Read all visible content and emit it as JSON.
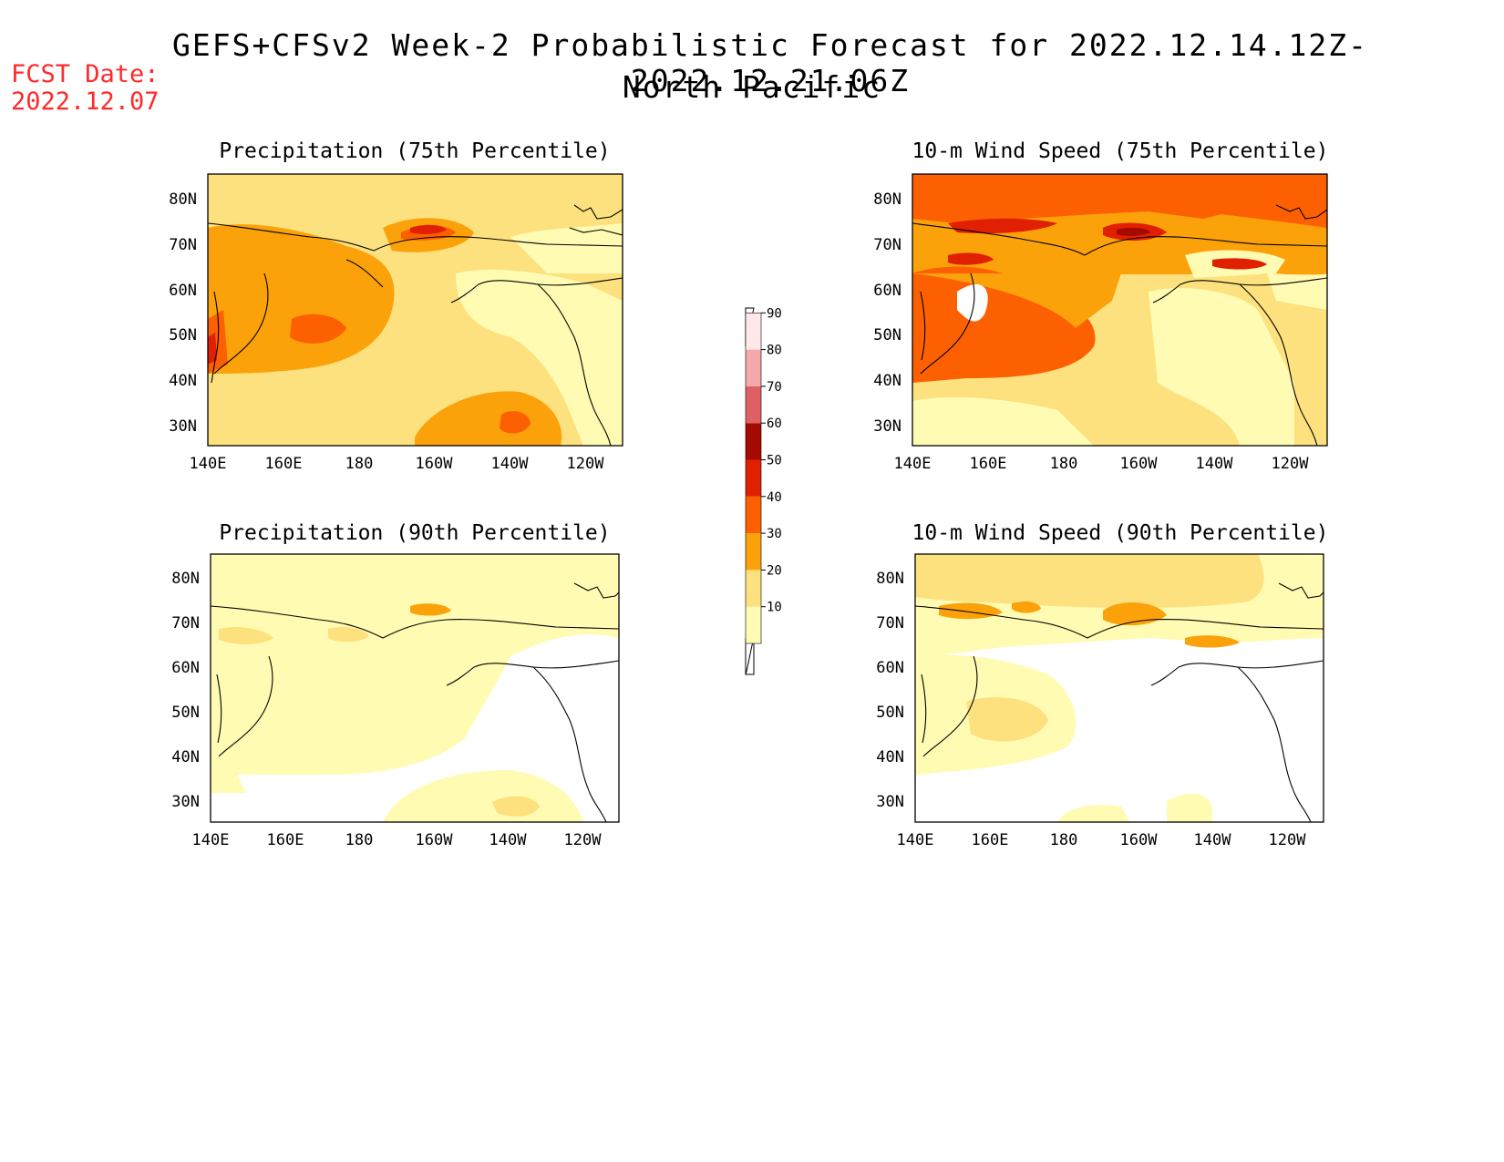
{
  "header": {
    "title": "GEFS+CFSv2 Week-2 Probabilistic Forecast for 2022.12.14.12Z-2022.12.21.06Z",
    "region": "North Pacific",
    "fcst_label": "FCST Date:",
    "fcst_date": "2022.12.07",
    "fcst_color": "#ff2a2a"
  },
  "colorbar": {
    "levels": [
      "10",
      "20",
      "30",
      "40",
      "50",
      "60",
      "70",
      "80",
      "90"
    ],
    "colors": [
      "#fffbb2",
      "#fde17e",
      "#fba10a",
      "#fd6000",
      "#e02000",
      "#a50a00",
      "#de6064",
      "#f4a8aa",
      "#ffe8ea"
    ]
  },
  "panels": [
    {
      "title": "Precipitation (75th Percentile)",
      "lat_ticks": [
        "80N",
        "70N",
        "60N",
        "50N",
        "40N",
        "30N"
      ],
      "lon_ticks": [
        "140E",
        "160E",
        "180",
        "160W",
        "140W",
        "120W"
      ]
    },
    {
      "title": "10-m Wind Speed (75th Percentile)",
      "lat_ticks": [
        "80N",
        "70N",
        "60N",
        "50N",
        "40N",
        "30N"
      ],
      "lon_ticks": [
        "140E",
        "160E",
        "180",
        "160W",
        "140W",
        "120W"
      ]
    },
    {
      "title": "Precipitation (90th Percentile)",
      "lat_ticks": [
        "80N",
        "70N",
        "60N",
        "50N",
        "40N",
        "30N"
      ],
      "lon_ticks": [
        "140E",
        "160E",
        "180",
        "160W",
        "140W",
        "120W"
      ]
    },
    {
      "title": "10-m Wind Speed (90th Percentile)",
      "lat_ticks": [
        "80N",
        "70N",
        "60N",
        "50N",
        "40N",
        "30N"
      ],
      "lon_ticks": [
        "140E",
        "160E",
        "180",
        "160W",
        "140W",
        "120W"
      ]
    }
  ]
}
